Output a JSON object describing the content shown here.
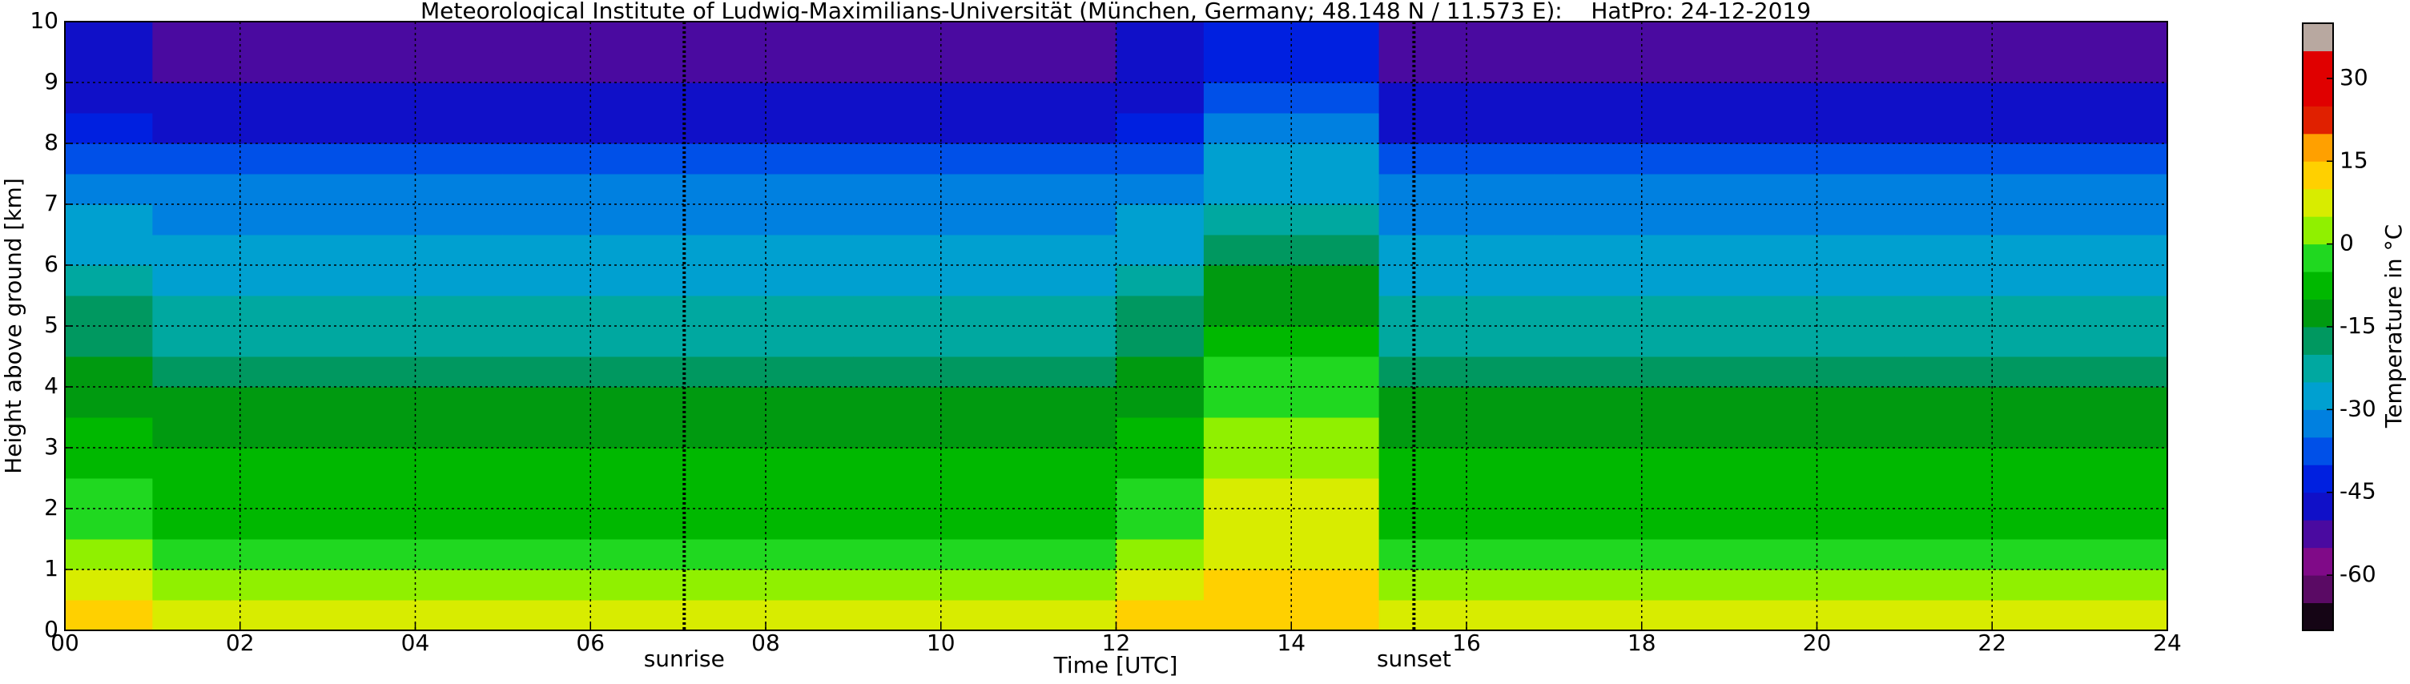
{
  "chart_data": {
    "type": "heatmap",
    "title": "Meteorological Institute of Ludwig-Maximilians-Universität (München, Germany; 48.148 N / 11.573 E):    HatPro: 24-12-2019",
    "x_label": "Time [UTC]",
    "y_label": "Height above ground [km]",
    "xlim": [
      0,
      24
    ],
    "ylim": [
      0,
      10
    ],
    "xticks": [
      {
        "value": 0,
        "label": "00"
      },
      {
        "value": 2,
        "label": "02"
      },
      {
        "value": 4,
        "label": "04"
      },
      {
        "value": 6,
        "label": "06"
      },
      {
        "value": 8,
        "label": "08"
      },
      10,
      12,
      14,
      16,
      18,
      20,
      22,
      24
    ],
    "yticks": [
      0,
      1,
      2,
      3,
      4,
      5,
      6,
      7,
      8,
      9,
      10
    ],
    "grid": true,
    "annotations": [
      {
        "text": "sunrise",
        "x": 7.07
      },
      {
        "text": "sunset",
        "x": 15.4
      }
    ],
    "x": [
      0.5,
      1.5,
      2.5,
      3.5,
      4.5,
      5.5,
      6.5,
      7.5,
      8.5,
      9.5,
      10.5,
      11.5,
      12.5,
      13.5,
      14.5,
      15.5,
      16.5,
      17.5,
      18.5,
      19.5,
      20.5,
      21.5,
      22.5,
      23.5
    ],
    "y": [
      0.25,
      0.75,
      1.25,
      1.75,
      2.25,
      2.75,
      3.25,
      3.75,
      4.25,
      4.75,
      5.25,
      5.75,
      6.25,
      6.75,
      7.25,
      7.75,
      8.25,
      8.75,
      9.25,
      9.75
    ],
    "z": [
      [
        10,
        7,
        3,
        -2,
        -5,
        -7,
        -9,
        -11,
        -14,
        -17,
        -20,
        -24,
        -27,
        -30,
        -33,
        -37,
        -42,
        -46,
        -48,
        -50
      ],
      [
        5,
        3,
        -3,
        -6,
        -8,
        -10,
        -12,
        -14,
        -18,
        -21,
        -24,
        -27,
        -29,
        -32,
        -35,
        -40,
        -47,
        -50,
        -51,
        -52
      ],
      [
        5,
        3,
        -3,
        -6,
        -8,
        -10,
        -12,
        -14,
        -18,
        -21,
        -24,
        -27,
        -29,
        -32,
        -35,
        -40,
        -47,
        -50,
        -51,
        -52
      ],
      [
        5,
        3,
        -3,
        -6,
        -8,
        -10,
        -12,
        -14,
        -18,
        -21,
        -24,
        -27,
        -29,
        -32,
        -35,
        -40,
        -47,
        -50,
        -51,
        -52
      ],
      [
        5,
        3,
        -3,
        -6,
        -8,
        -10,
        -12,
        -14,
        -18,
        -21,
        -24,
        -27,
        -29,
        -32,
        -35,
        -40,
        -47,
        -50,
        -51,
        -52
      ],
      [
        5,
        3,
        -3,
        -6,
        -8,
        -10,
        -12,
        -14,
        -18,
        -21,
        -24,
        -27,
        -29,
        -32,
        -35,
        -40,
        -47,
        -50,
        -51,
        -52
      ],
      [
        5,
        3,
        -3,
        -6,
        -8,
        -10,
        -12,
        -14,
        -18,
        -21,
        -24,
        -27,
        -29,
        -32,
        -35,
        -40,
        -47,
        -50,
        -51,
        -52
      ],
      [
        5,
        3,
        -3,
        -6,
        -8,
        -10,
        -12,
        -14,
        -18,
        -21,
        -24,
        -27,
        -29,
        -32,
        -35,
        -40,
        -47,
        -50,
        -51,
        -52
      ],
      [
        5,
        3,
        -3,
        -6,
        -8,
        -10,
        -12,
        -14,
        -18,
        -21,
        -24,
        -27,
        -29,
        -32,
        -35,
        -40,
        -47,
        -50,
        -51,
        -52
      ],
      [
        5,
        3,
        -3,
        -6,
        -8,
        -10,
        -12,
        -14,
        -18,
        -21,
        -24,
        -27,
        -29,
        -32,
        -35,
        -40,
        -47,
        -50,
        -51,
        -52
      ],
      [
        5,
        3,
        -3,
        -6,
        -8,
        -10,
        -12,
        -14,
        -18,
        -21,
        -24,
        -27,
        -29,
        -32,
        -35,
        -40,
        -47,
        -50,
        -51,
        -52
      ],
      [
        5,
        3,
        -3,
        -6,
        -8,
        -10,
        -12,
        -14,
        -18,
        -21,
        -24,
        -27,
        -29,
        -32,
        -35,
        -40,
        -47,
        -50,
        -51,
        -52
      ],
      [
        10,
        7,
        3,
        -2,
        -5,
        -7,
        -9,
        -11,
        -14,
        -17,
        -20,
        -24,
        -27,
        -30,
        -33,
        -37,
        -42,
        -46,
        -48,
        -50
      ],
      [
        14,
        12,
        9,
        8,
        6,
        4,
        0,
        -2,
        -5,
        -8,
        -12,
        -15,
        -18,
        -22,
        -26,
        -30,
        -34,
        -38,
        -41,
        -45
      ],
      [
        14,
        12,
        9,
        8,
        6,
        4,
        0,
        -2,
        -5,
        -8,
        -12,
        -15,
        -18,
        -22,
        -26,
        -30,
        -34,
        -38,
        -41,
        -45
      ],
      [
        5,
        3,
        -3,
        -6,
        -8,
        -10,
        -12,
        -14,
        -18,
        -21,
        -24,
        -27,
        -29,
        -32,
        -35,
        -40,
        -47,
        -50,
        -51,
        -52
      ],
      [
        5,
        3,
        -3,
        -6,
        -8,
        -10,
        -12,
        -14,
        -18,
        -21,
        -24,
        -27,
        -29,
        -32,
        -35,
        -40,
        -47,
        -50,
        -51,
        -52
      ],
      [
        5,
        3,
        -3,
        -6,
        -8,
        -10,
        -12,
        -14,
        -18,
        -21,
        -24,
        -27,
        -29,
        -32,
        -35,
        -40,
        -47,
        -50,
        -51,
        -52
      ],
      [
        5,
        3,
        -3,
        -6,
        -8,
        -10,
        -12,
        -14,
        -18,
        -21,
        -24,
        -27,
        -29,
        -32,
        -35,
        -40,
        -47,
        -50,
        -51,
        -52
      ],
      [
        5,
        3,
        -3,
        -6,
        -8,
        -10,
        -12,
        -14,
        -18,
        -21,
        -24,
        -27,
        -29,
        -32,
        -35,
        -40,
        -47,
        -50,
        -51,
        -52
      ],
      [
        5,
        3,
        -3,
        -6,
        -8,
        -10,
        -12,
        -14,
        -18,
        -21,
        -24,
        -27,
        -29,
        -32,
        -35,
        -40,
        -47,
        -50,
        -51,
        -52
      ],
      [
        5,
        3,
        -3,
        -6,
        -8,
        -10,
        -12,
        -14,
        -18,
        -21,
        -24,
        -27,
        -29,
        -32,
        -35,
        -40,
        -47,
        -50,
        -51,
        -52
      ],
      [
        5,
        3,
        -3,
        -6,
        -8,
        -10,
        -12,
        -14,
        -18,
        -21,
        -24,
        -27,
        -29,
        -32,
        -35,
        -40,
        -47,
        -50,
        -51,
        -52
      ],
      [
        5,
        3,
        -3,
        -6,
        -8,
        -10,
        -12,
        -14,
        -18,
        -21,
        -24,
        -27,
        -29,
        -32,
        -35,
        -40,
        -47,
        -50,
        -51,
        -52
      ]
    ],
    "colorbar": {
      "label": "Temperature in °C",
      "lim": [
        -70,
        40
      ],
      "ticks": [
        -60,
        -45,
        -30,
        -15,
        0,
        15,
        30
      ],
      "levels": [
        -70,
        -65,
        -60,
        -55,
        -50,
        -45,
        -40,
        -35,
        -30,
        -25,
        -20,
        -15,
        -10,
        -5,
        0,
        5,
        10,
        15,
        20,
        25,
        30,
        35,
        40
      ],
      "colors": [
        "#150515",
        "#5a0a64",
        "#800a88",
        "#4a0aa0",
        "#1010c8",
        "#0020e0",
        "#0050e8",
        "#0080e0",
        "#00a0d0",
        "#00a8a0",
        "#009860",
        "#009a10",
        "#00b800",
        "#20d820",
        "#90f000",
        "#d8ec00",
        "#ffd000",
        "#ffa000",
        "#e02000",
        "#e00000",
        "#e00000",
        "#b8a8a0"
      ]
    }
  }
}
